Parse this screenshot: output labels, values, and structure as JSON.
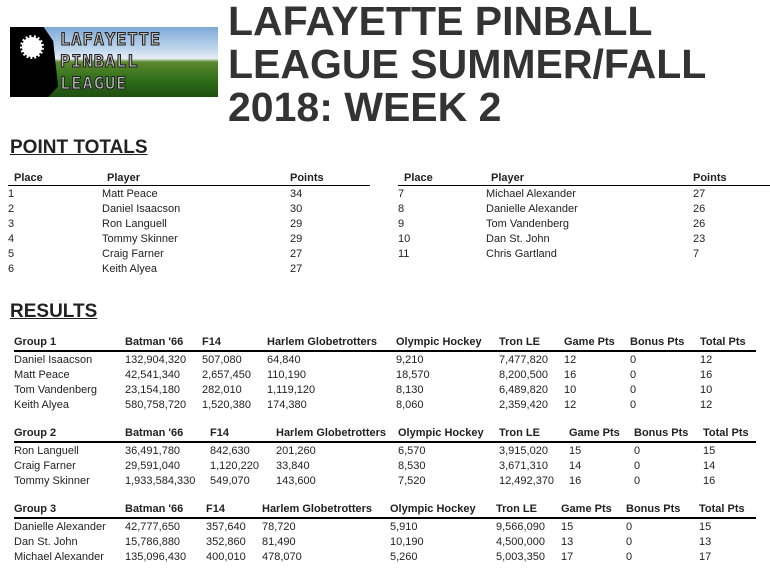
{
  "header": {
    "title": "LAFAYETTE PINBALL LEAGUE SUMMER/FALL 2018: WEEK 2",
    "logo_text": [
      "LAFAYETTE",
      "PINBALL",
      "LEAGUE"
    ]
  },
  "point_totals": {
    "heading": "POINT TOTALS",
    "columns": [
      "Place",
      "Player",
      "Points"
    ],
    "left": [
      [
        "1",
        "Matt Peace",
        "34"
      ],
      [
        "2",
        "Daniel Isaacson",
        "30"
      ],
      [
        "3",
        "Ron Languell",
        "29"
      ],
      [
        "4",
        "Tommy Skinner",
        "29"
      ],
      [
        "5",
        "Craig Farner",
        "27"
      ],
      [
        "6",
        "Keith Alyea",
        "27"
      ]
    ],
    "right": [
      [
        "7",
        "Michael Alexander",
        "27"
      ],
      [
        "8",
        "Danielle Alexander",
        "26"
      ],
      [
        "9",
        "Tom Vandenberg",
        "26"
      ],
      [
        "10",
        "Dan St. John",
        "23"
      ],
      [
        "11",
        "Chris Gartland",
        "7"
      ]
    ]
  },
  "results": {
    "heading": "RESULTS",
    "columns": [
      "Batman '66",
      "F14",
      "Harlem Globetrotters",
      "Olympic Hockey",
      "Tron LE",
      "Game Pts",
      "Bonus Pts",
      "Total Pts"
    ],
    "groups": [
      {
        "name": "Group 1",
        "rows": [
          [
            "Daniel Isaacson",
            "132,904,320",
            "507,080",
            "64,840",
            "9,210",
            "7,477,820",
            "12",
            "0",
            "12"
          ],
          [
            "Matt Peace",
            "42,541,340",
            "2,657,450",
            "110,190",
            "18,570",
            "8,200,500",
            "16",
            "0",
            "16"
          ],
          [
            "Tom Vandenberg",
            "23,154,180",
            "282,010",
            "1,119,120",
            "8,130",
            "6,489,820",
            "10",
            "0",
            "10"
          ],
          [
            "Keith Alyea",
            "580,758,720",
            "1,520,380",
            "174,380",
            "8,060",
            "2,359,420",
            "12",
            "0",
            "12"
          ]
        ]
      },
      {
        "name": "Group 2",
        "rows": [
          [
            "Ron Languell",
            "36,491,780",
            "842,630",
            "201,260",
            "6,570",
            "3,915,020",
            "15",
            "0",
            "15"
          ],
          [
            "Craig Farner",
            "29,591,040",
            "1,120,220",
            "33,840",
            "8,530",
            "3,671,310",
            "14",
            "0",
            "14"
          ],
          [
            "Tommy Skinner",
            "1,933,584,330",
            "549,070",
            "143,600",
            "7,520",
            "12,492,370",
            "16",
            "0",
            "16"
          ]
        ]
      },
      {
        "name": "Group 3",
        "rows": [
          [
            "Danielle Alexander",
            "42,777,650",
            "357,640",
            "78,720",
            "5,910",
            "9,566,090",
            "15",
            "0",
            "15"
          ],
          [
            "Dan St. John",
            "15,786,880",
            "352,860",
            "81,490",
            "10,190",
            "4,500,000",
            "13",
            "0",
            "13"
          ],
          [
            "Michael Alexander",
            "135,096,430",
            "400,010",
            "478,070",
            "5,260",
            "5,003,350",
            "17",
            "0",
            "17"
          ]
        ]
      }
    ]
  }
}
